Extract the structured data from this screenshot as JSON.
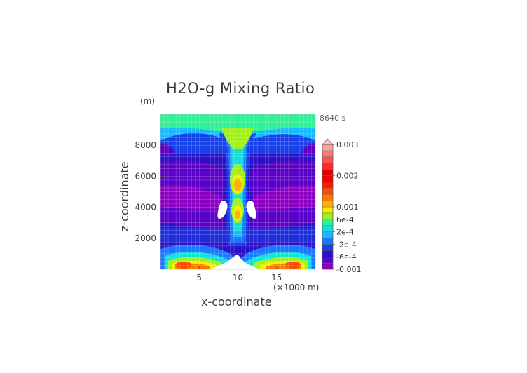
{
  "figure": {
    "title": "H2O-g Mixing Ratio",
    "time_label": "8640 s",
    "z_unit": "(m)",
    "x_unit": "(×1000 m)",
    "xlabel": "x-coordinate",
    "ylabel": "z-coordinate"
  },
  "chart_data": {
    "type": "heatmap",
    "title": "H2O-g Mixing Ratio",
    "xlabel": "x-coordinate",
    "ylabel": "z-coordinate",
    "x_unit": "(×1000 m)",
    "y_unit": "(m)",
    "xlim": [
      0,
      20
    ],
    "ylim": [
      0,
      10000
    ],
    "x_ticks": [
      5,
      10,
      15
    ],
    "y_ticks": [
      2000,
      4000,
      6000,
      8000
    ],
    "grid": true,
    "colorbar": {
      "labels": [
        "0.003",
        "0.002",
        "0.001",
        "6e-4",
        "2e-4",
        "-2e-4",
        "-6e-4",
        "-0.001"
      ],
      "label_values": [
        0.003,
        0.002,
        0.001,
        0.0006,
        0.0002,
        -0.0002,
        -0.0006,
        -0.001
      ],
      "levels": [
        -0.001,
        -0.0008,
        -0.0006,
        -0.0004,
        -0.0002,
        0.0,
        0.0002,
        0.0004,
        0.0006,
        0.0008,
        0.001,
        0.0012,
        0.0014,
        0.0016,
        0.0018,
        0.002,
        0.0022,
        0.0024,
        0.0026,
        0.0028,
        0.003
      ],
      "colors": [
        "#8a00c0",
        "#5a00c8",
        "#2a10c8",
        "#1840e8",
        "#1a78ff",
        "#18b8ff",
        "#10e0d8",
        "#30f098",
        "#a0f020",
        "#f0f000",
        "#ffb000",
        "#ff7800",
        "#ff4c00",
        "#ff1800",
        "#f00000",
        "#e00000",
        "#ff2828",
        "#ff5050",
        "#ff7878",
        "#ffa0a0"
      ],
      "extend": "max",
      "extend_color": "#f0c8c8"
    }
  }
}
